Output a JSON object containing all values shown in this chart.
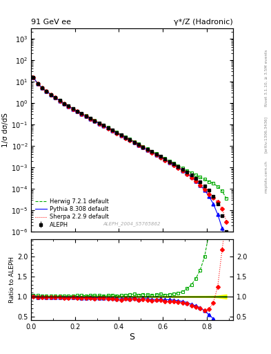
{
  "title_left": "91 GeV ee",
  "title_right": "γ*/Z (Hadronic)",
  "ylabel_main": "1/σ dσ/dS",
  "ylabel_ratio": "Ratio to ALEPH",
  "xlabel": "S",
  "watermark": "ALEPH_2004_S5765862",
  "right_label": "Rivet 3.1.10, ≥ 3.5M events",
  "arxiv_label": "[arXiv:1306.3436]",
  "mcplots_label": "mcplots.cern.ch",
  "ylim_main": [
    1e-06,
    3000
  ],
  "ylim_ratio": [
    0.4,
    2.45
  ],
  "xlim": [
    0.0,
    0.92
  ],
  "legend_entries": [
    "ALEPH",
    "Herwig 7.2.1 default",
    "Pythia 8.308 default",
    "Sherpa 2.2.9 default"
  ],
  "aleph_color": "#000000",
  "herwig_color": "#00aa00",
  "pythia_color": "#0000ff",
  "sherpa_color": "#ff0000",
  "band_yellow": "#ffff00",
  "band_green": "#00bb00",
  "aleph_x": [
    0.01,
    0.03,
    0.05,
    0.07,
    0.09,
    0.11,
    0.13,
    0.15,
    0.17,
    0.19,
    0.21,
    0.23,
    0.25,
    0.27,
    0.29,
    0.31,
    0.33,
    0.35,
    0.37,
    0.39,
    0.41,
    0.43,
    0.45,
    0.47,
    0.49,
    0.51,
    0.53,
    0.55,
    0.57,
    0.59,
    0.61,
    0.63,
    0.65,
    0.67,
    0.69,
    0.71,
    0.73,
    0.75,
    0.77,
    0.79,
    0.81,
    0.83,
    0.85,
    0.87,
    0.89
  ],
  "aleph_y": [
    15.0,
    8.0,
    5.0,
    3.5,
    2.5,
    1.8,
    1.3,
    0.95,
    0.72,
    0.54,
    0.41,
    0.32,
    0.25,
    0.19,
    0.148,
    0.115,
    0.09,
    0.07,
    0.054,
    0.042,
    0.033,
    0.025,
    0.02,
    0.015,
    0.012,
    0.009,
    0.007,
    0.0055,
    0.0042,
    0.0032,
    0.0025,
    0.0019,
    0.00145,
    0.0011,
    0.00082,
    0.0006,
    0.00044,
    0.00031,
    0.00021,
    0.00014,
    8.5e-05,
    4.5e-05,
    2e-05,
    5.5e-06,
    1e-06
  ],
  "aleph_stat": [
    0.15,
    0.08,
    0.045,
    0.03,
    0.02,
    0.014,
    0.01,
    0.007,
    0.005,
    0.004,
    0.003,
    0.002,
    0.0015,
    0.0012,
    0.0009,
    0.0007,
    0.00055,
    0.00042,
    0.00032,
    0.00025,
    0.0002,
    0.00015,
    0.00012,
    9e-05,
    7e-05,
    5.5e-05,
    4.2e-05,
    3.3e-05,
    2.5e-05,
    1.9e-05,
    1.5e-05,
    1.1e-05,
    8.6e-06,
    6.5e-06,
    4.9e-06,
    3.7e-06,
    2.8e-06,
    2e-06,
    1.4e-06,
    9e-07,
    6e-07,
    3.5e-07,
    2e-07,
    6e-08,
    1.5e-08
  ],
  "aleph_syst": [
    0.3,
    0.15,
    0.08,
    0.05,
    0.035,
    0.025,
    0.018,
    0.013,
    0.01,
    0.007,
    0.005,
    0.004,
    0.003,
    0.0023,
    0.0018,
    0.0014,
    0.0011,
    0.0008,
    0.0006,
    0.0005,
    0.0004,
    0.0003,
    0.00024,
    0.00018,
    0.00014,
    0.00011,
    8.5e-05,
    6.5e-05,
    5e-05,
    3.8e-05,
    3e-05,
    2.3e-05,
    1.7e-05,
    1.3e-05,
    1e-05,
    7.5e-06,
    5.5e-06,
    4e-06,
    2.8e-06,
    1.9e-06,
    1.2e-06,
    7e-07,
    4e-07,
    2e-07,
    5e-08
  ],
  "herwig_y": [
    15.5,
    8.2,
    5.1,
    3.55,
    2.52,
    1.82,
    1.32,
    0.96,
    0.73,
    0.55,
    0.42,
    0.33,
    0.255,
    0.195,
    0.152,
    0.118,
    0.092,
    0.072,
    0.056,
    0.043,
    0.034,
    0.026,
    0.021,
    0.016,
    0.0125,
    0.0095,
    0.0073,
    0.0057,
    0.0044,
    0.0034,
    0.0026,
    0.002,
    0.00155,
    0.0012,
    0.00092,
    0.00072,
    0.00057,
    0.00045,
    0.00035,
    0.00028,
    0.00022,
    0.00018,
    0.00013,
    8e-05,
    3.5e-05
  ],
  "pythia_y": [
    15.2,
    7.9,
    4.95,
    3.45,
    2.47,
    1.78,
    1.28,
    0.93,
    0.7,
    0.53,
    0.4,
    0.31,
    0.242,
    0.185,
    0.143,
    0.111,
    0.087,
    0.067,
    0.052,
    0.04,
    0.031,
    0.024,
    0.019,
    0.0145,
    0.0112,
    0.0086,
    0.0066,
    0.0051,
    0.0039,
    0.003,
    0.0023,
    0.00175,
    0.00132,
    0.000985,
    0.00072,
    0.00051,
    0.000355,
    0.000238,
    0.000152,
    9e-05,
    4.6e-05,
    2e-05,
    6.5e-06,
    1.5e-06,
    2.5e-07
  ],
  "sherpa_y": [
    15.1,
    7.85,
    4.92,
    3.43,
    2.45,
    1.76,
    1.27,
    0.92,
    0.695,
    0.525,
    0.398,
    0.308,
    0.24,
    0.183,
    0.141,
    0.11,
    0.086,
    0.066,
    0.051,
    0.039,
    0.03,
    0.0235,
    0.0185,
    0.0142,
    0.011,
    0.0084,
    0.0064,
    0.0049,
    0.0038,
    0.0029,
    0.0022,
    0.00168,
    0.00127,
    0.00095,
    0.000695,
    0.00049,
    0.00034,
    0.000228,
    0.000148,
    9.2e-05,
    5.8e-05,
    3.8e-05,
    2.5e-05,
    1.2e-05,
    3e-06
  ]
}
